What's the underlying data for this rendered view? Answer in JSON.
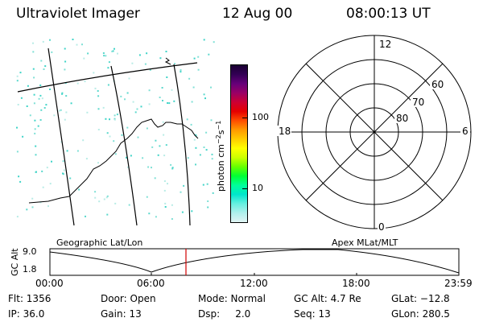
{
  "header": {
    "instrument": "Ultraviolet Imager",
    "date": "12 Aug 00",
    "time": "08:00:13 UT"
  },
  "colorbar": {
    "label_html": "photon cm",
    "ticks": [
      "100",
      "10"
    ],
    "colors": [
      "#1a0033",
      "#330055",
      "#66007a",
      "#990066",
      "#cc0033",
      "#e60000",
      "#ff4d00",
      "#ff9900",
      "#ffcc00",
      "#ffff00",
      "#ccff00",
      "#66ff00",
      "#00ff33",
      "#00ff99",
      "#00e6cc",
      "#66f0e0",
      "#b0f0ec",
      "#e0f4f4"
    ]
  },
  "polar_plot": {
    "labels": {
      "top": "12",
      "bottom": "0",
      "left": "18",
      "right": "6"
    },
    "lat_labels": [
      "60",
      "70",
      "80"
    ]
  },
  "timeline": {
    "left_title": "Geographic Lat/Lon",
    "right_title": "Apex MLat/MLT",
    "axis_label": "GC Alt",
    "y_ticks": [
      "9.0",
      "1.8"
    ],
    "x_ticks": [
      "00:00",
      "06:00",
      "12:00",
      "18:00",
      "23:59"
    ],
    "marker_time": "08:00"
  },
  "status": {
    "flt": "Flt: 1356",
    "ip": "IP: 36.0",
    "door": "Door: Open",
    "gain": "Gain: 13",
    "mode": "Mode: Normal",
    "dsp": "Dsp:     2.0",
    "gcalt": "GC Alt: 4.7 Re",
    "seq": "Seq: 13",
    "glat": "GLat: −12.8",
    "glon": "GLon: 280.5"
  }
}
